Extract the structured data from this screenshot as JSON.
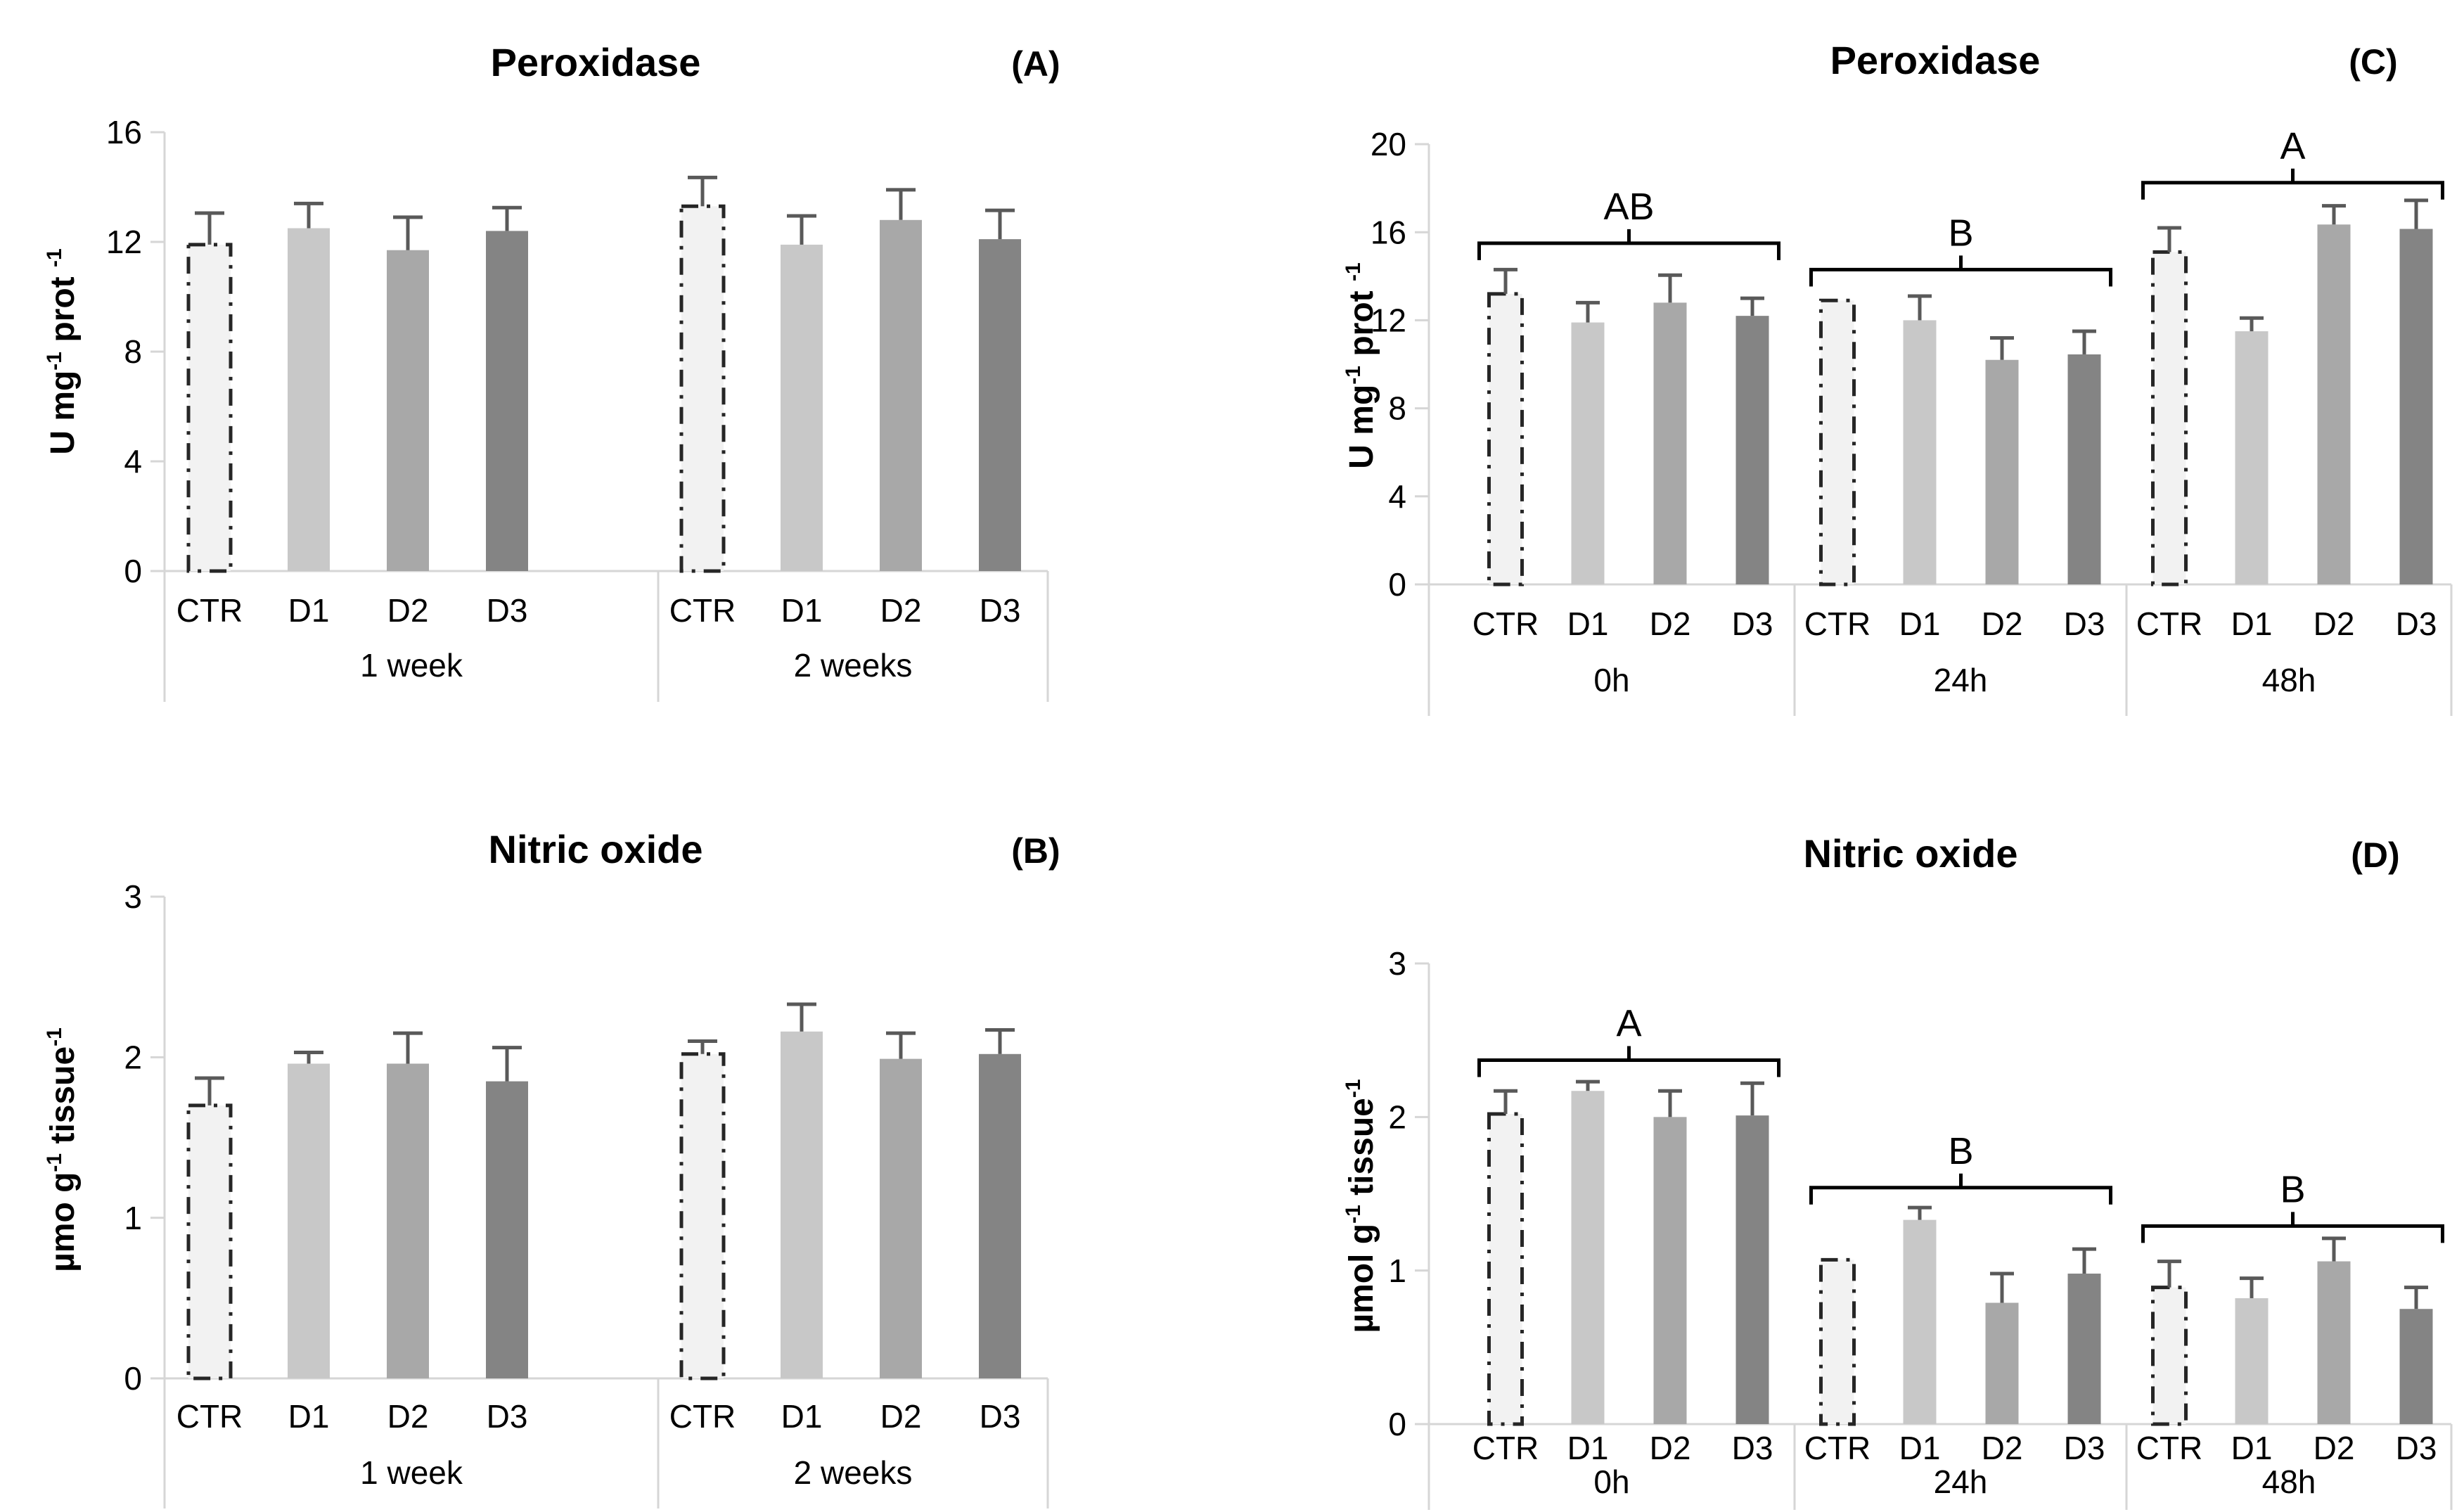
{
  "figure": {
    "background": "#ffffff",
    "colors": {
      "bar_fills": [
        "#f2f2f2",
        "#c8c8c8",
        "#a8a8a8",
        "#848484"
      ],
      "ctr_dash_border": "#262626",
      "error_bar": "#595959",
      "axis_line": "#d6d6d6",
      "text": "#000000",
      "bracket": "#000000"
    }
  },
  "chart_data": [
    {
      "panel_label": "(A)",
      "position": "top-left",
      "type": "bar",
      "title": "Peroxidase",
      "ylabel": "U mg^-1 prot ^-1",
      "ylim": [
        0,
        16
      ],
      "yticks": [
        0,
        4,
        8,
        12,
        16
      ],
      "categories": [
        "CTR",
        "D1",
        "D2",
        "D3"
      ],
      "groups": [
        {
          "label": "1 week",
          "values": [
            11.9,
            12.5,
            11.7,
            12.4
          ],
          "errors": [
            1.15,
            0.9,
            1.2,
            0.85
          ]
        },
        {
          "label": "2 weeks",
          "values": [
            13.3,
            11.9,
            12.8,
            12.1
          ],
          "errors": [
            1.05,
            1.05,
            1.1,
            1.05
          ]
        }
      ],
      "brackets": []
    },
    {
      "panel_label": "(C)",
      "position": "top-right",
      "type": "bar",
      "title": "Peroxidase",
      "ylabel": "U mg^-1 prot ^-1",
      "ylim": [
        0,
        20
      ],
      "yticks": [
        0,
        4,
        8,
        12,
        16,
        20
      ],
      "categories": [
        "CTR",
        "D1",
        "D2",
        "D3"
      ],
      "groups": [
        {
          "label": "0h",
          "values": [
            13.2,
            11.9,
            12.8,
            12.2
          ],
          "errors": [
            1.1,
            0.9,
            1.25,
            0.8
          ]
        },
        {
          "label": "24h",
          "values": [
            12.9,
            12.0,
            10.2,
            10.45
          ],
          "errors": [
            null,
            1.1,
            1.0,
            1.05
          ]
        },
        {
          "label": "48h",
          "values": [
            15.1,
            11.5,
            16.35,
            16.15
          ],
          "errors": [
            1.1,
            0.6,
            0.85,
            1.3
          ]
        }
      ],
      "brackets": [
        {
          "group": 0,
          "label": "AB",
          "y": 15.5
        },
        {
          "group": 1,
          "label": "B",
          "y": 14.3
        },
        {
          "group": 2,
          "label": "A",
          "y": 18.25
        }
      ]
    },
    {
      "panel_label": "(B)",
      "position": "bottom-left",
      "type": "bar",
      "title": "Nitric oxide",
      "ylabel": "µmo g^-1 tissue^-1",
      "ylim": [
        0,
        3
      ],
      "yticks": [
        0,
        1,
        2,
        3
      ],
      "categories": [
        "CTR",
        "D1",
        "D2",
        "D3"
      ],
      "groups": [
        {
          "label": "1 week",
          "values": [
            1.7,
            1.96,
            1.96,
            1.85
          ],
          "errors": [
            0.17,
            0.07,
            0.19,
            0.21
          ]
        },
        {
          "label": "2 weeks",
          "values": [
            2.02,
            2.16,
            1.99,
            2.02
          ],
          "errors": [
            0.08,
            0.17,
            0.16,
            0.15
          ]
        }
      ],
      "brackets": []
    },
    {
      "panel_label": "(D)",
      "position": "bottom-right",
      "type": "bar",
      "title": "Nitric oxide",
      "ylabel": "µmol g^-1 tissue^-1",
      "ylim": [
        0,
        3
      ],
      "yticks": [
        0,
        1,
        2,
        3
      ],
      "categories": [
        "CTR",
        "D1",
        "D2",
        "D3"
      ],
      "groups": [
        {
          "label": "0h",
          "values": [
            2.02,
            2.17,
            2.0,
            2.01
          ],
          "errors": [
            0.15,
            0.06,
            0.17,
            0.21
          ]
        },
        {
          "label": "24h",
          "values": [
            1.07,
            1.33,
            0.79,
            0.98
          ],
          "errors": [
            null,
            0.08,
            0.19,
            0.16
          ]
        },
        {
          "label": "48h",
          "values": [
            0.89,
            0.82,
            1.06,
            0.75
          ],
          "errors": [
            0.17,
            0.13,
            0.15,
            0.14
          ]
        }
      ],
      "brackets": [
        {
          "group": 0,
          "label": "A",
          "y": 2.37
        },
        {
          "group": 1,
          "label": "B",
          "y": 1.54
        },
        {
          "group": 2,
          "label": "B",
          "y": 1.29
        }
      ]
    }
  ]
}
